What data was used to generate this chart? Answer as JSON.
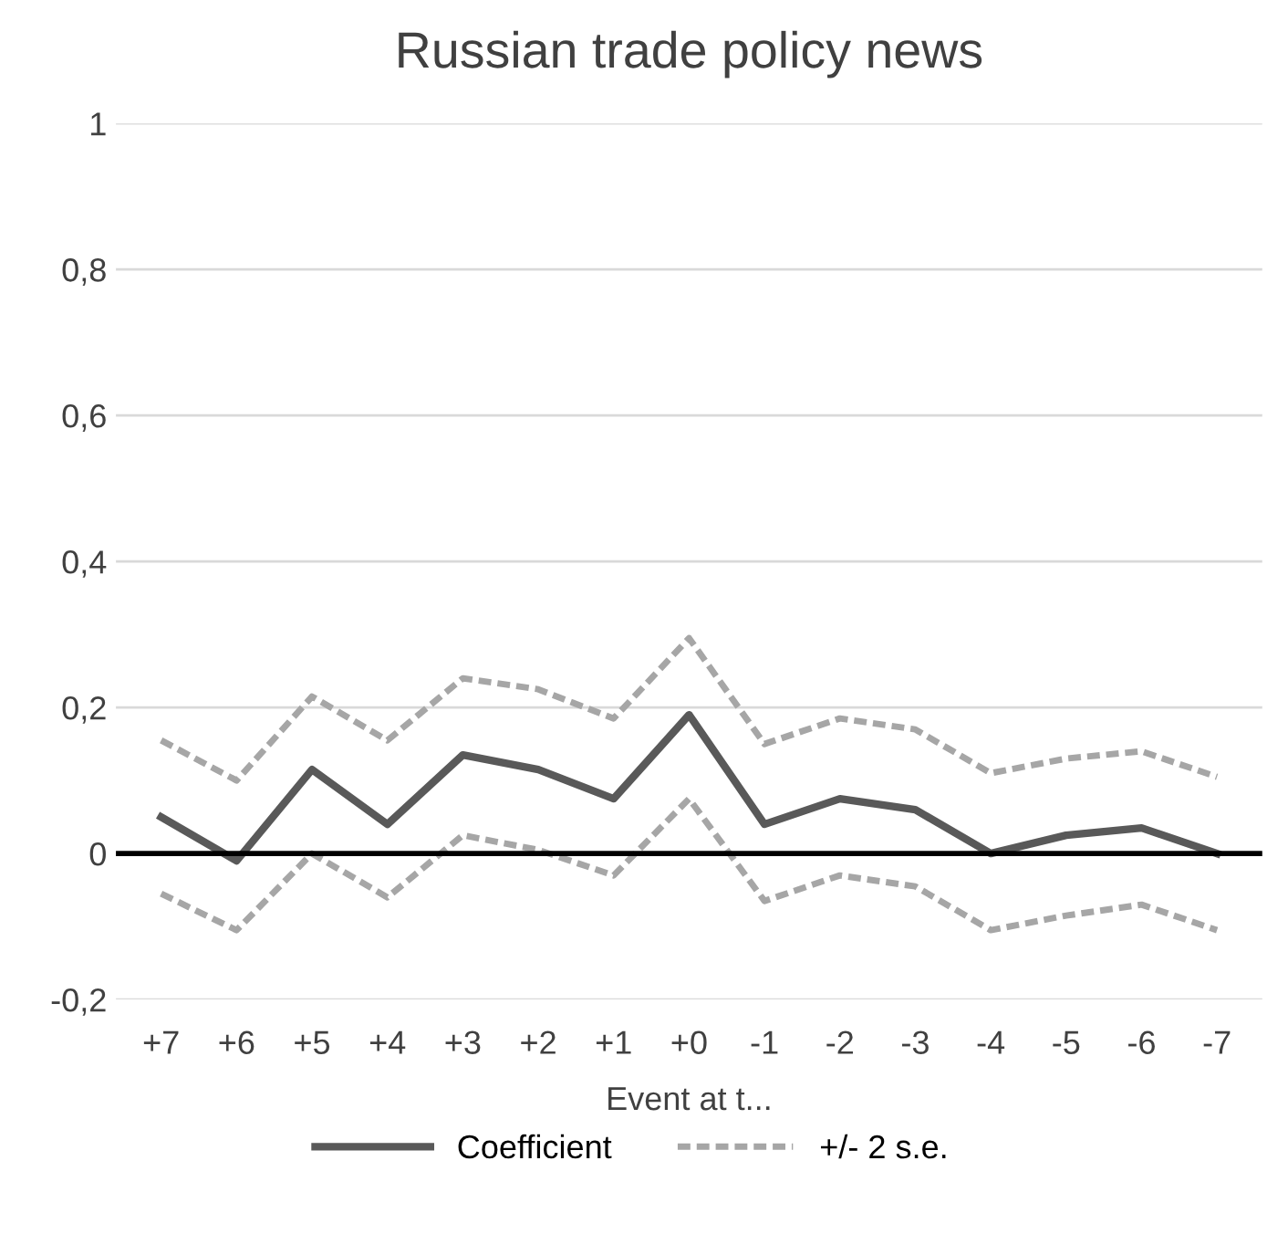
{
  "chart_data": {
    "type": "line",
    "title": "Russian trade policy news",
    "xlabel": "Event at t...",
    "categories": [
      "+7",
      "+6",
      "+5",
      "+4",
      "+3",
      "+2",
      "+1",
      "+0",
      "-1",
      "-2",
      "-3",
      "-4",
      "-5",
      "-6",
      "-7"
    ],
    "series": [
      {
        "name": "Coefficient",
        "color": "#595959",
        "line_style": "solid",
        "values": [
          0.05,
          -0.01,
          0.115,
          0.04,
          0.135,
          0.115,
          0.075,
          0.19,
          0.04,
          0.075,
          0.06,
          0.0,
          0.025,
          0.035,
          0.0
        ]
      },
      {
        "name": "+/- 2 s.e.",
        "color": "#a6a6a6",
        "line_style": "dashed",
        "values": [
          0.155,
          0.1,
          0.215,
          0.155,
          0.24,
          0.225,
          0.185,
          0.295,
          0.15,
          0.185,
          0.17,
          0.11,
          0.13,
          0.14,
          0.105
        ]
      },
      {
        "color": "#a6a6a6",
        "line_style": "dashed",
        "values": [
          -0.055,
          -0.105,
          0.0,
          -0.06,
          0.025,
          0.005,
          -0.03,
          0.075,
          -0.065,
          -0.03,
          -0.045,
          -0.105,
          -0.085,
          -0.07,
          -0.105
        ]
      }
    ],
    "ylim": [
      -0.2,
      1
    ],
    "yticks": [
      {
        "value": -0.2,
        "label": "-0,2"
      },
      0,
      {
        "value": 0.2,
        "label": "0,2"
      },
      {
        "value": 0.4,
        "label": "0,4"
      },
      {
        "value": 0.6,
        "label": "0,6"
      },
      {
        "value": 0.8,
        "label": "0,8"
      },
      1
    ],
    "ref_lines": [
      {
        "axis": "y",
        "value": 0,
        "color": "#000000"
      }
    ],
    "grid": "y",
    "legend": "bottom",
    "marker": "none"
  }
}
